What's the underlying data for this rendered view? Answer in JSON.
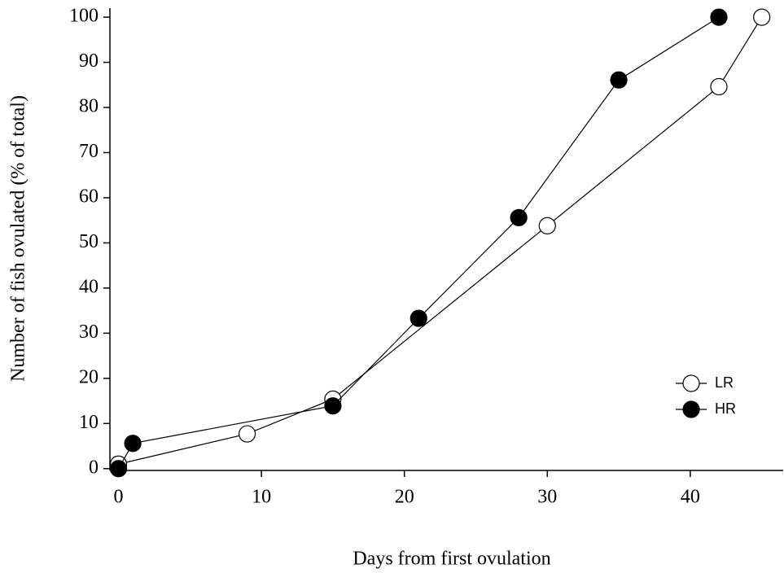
{
  "chart_data": {
    "type": "line",
    "xlabel": "Days from first ovulation",
    "ylabel": "Number of fish ovulated (% of total)",
    "xlim": [
      -0.6,
      46.5
    ],
    "xticks": [
      0,
      10,
      20,
      30,
      40
    ],
    "ylim": [
      -0.4,
      102
    ],
    "yticks": [
      0,
      10,
      20,
      30,
      40,
      50,
      60,
      70,
      80,
      90,
      100
    ],
    "legend": "lower right",
    "series": [
      {
        "name": "LR",
        "color": "#ffffff",
        "x": [
          0,
          9,
          15,
          30,
          42,
          45
        ],
        "values": [
          1,
          7.7,
          15.4,
          53.8,
          84.6,
          100
        ]
      },
      {
        "name": "HR",
        "color": "#000000",
        "x": [
          0,
          1,
          15,
          21,
          28,
          35,
          42
        ],
        "values": [
          0,
          5.6,
          13.9,
          33.3,
          55.6,
          86.1,
          100
        ]
      }
    ]
  }
}
